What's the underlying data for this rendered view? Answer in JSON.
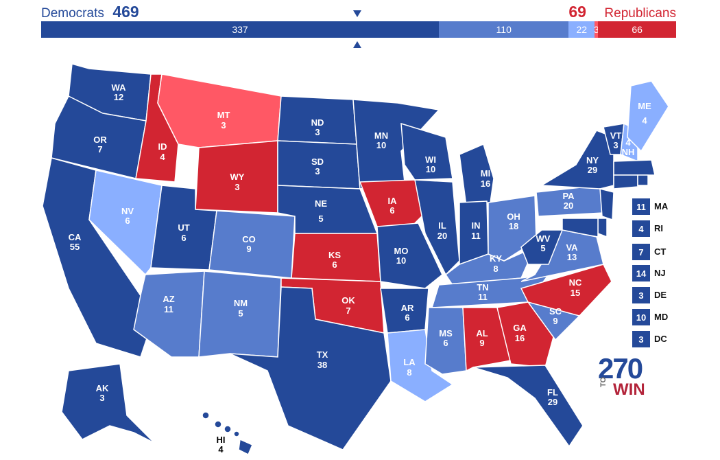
{
  "header": {
    "dem_label": "Democrats",
    "dem_total": "469",
    "rep_total": "69",
    "rep_label": "Republicans"
  },
  "bar": [
    {
      "label": "337",
      "value": 337,
      "color": "#244999"
    },
    {
      "label": "110",
      "value": 110,
      "color": "#577ccc"
    },
    {
      "label": "22",
      "value": 22,
      "color": "#8aafff"
    },
    {
      "label": "3",
      "value": 3,
      "color": "#ff5865"
    },
    {
      "label": "66",
      "value": 66,
      "color": "#d22532"
    }
  ],
  "colors": {
    "safe_dem": "#244999",
    "likely_dem": "#577ccc",
    "lean_dem": "#8aafff",
    "lean_rep": "#ff5865",
    "safe_rep": "#d22532"
  },
  "states": [
    {
      "abbr": "WA",
      "ev": "12"
    },
    {
      "abbr": "OR",
      "ev": "7"
    },
    {
      "abbr": "CA",
      "ev": "55"
    },
    {
      "abbr": "ID",
      "ev": "4"
    },
    {
      "abbr": "MT",
      "ev": "3"
    },
    {
      "abbr": "WY",
      "ev": "3"
    },
    {
      "abbr": "NV",
      "ev": "6"
    },
    {
      "abbr": "UT",
      "ev": "6"
    },
    {
      "abbr": "AZ",
      "ev": "11"
    },
    {
      "abbr": "CO",
      "ev": "9"
    },
    {
      "abbr": "NM",
      "ev": "5"
    },
    {
      "abbr": "ND",
      "ev": "3"
    },
    {
      "abbr": "SD",
      "ev": "3"
    },
    {
      "abbr": "NE",
      "ev": "5"
    },
    {
      "abbr": "KS",
      "ev": "6"
    },
    {
      "abbr": "OK",
      "ev": "7"
    },
    {
      "abbr": "TX",
      "ev": "38"
    },
    {
      "abbr": "MN",
      "ev": "10"
    },
    {
      "abbr": "IA",
      "ev": "6"
    },
    {
      "abbr": "MO",
      "ev": "10"
    },
    {
      "abbr": "AR",
      "ev": "6"
    },
    {
      "abbr": "LA",
      "ev": "8"
    },
    {
      "abbr": "WI",
      "ev": "10"
    },
    {
      "abbr": "IL",
      "ev": "20"
    },
    {
      "abbr": "MI",
      "ev": "16"
    },
    {
      "abbr": "IN",
      "ev": "11"
    },
    {
      "abbr": "OH",
      "ev": "18"
    },
    {
      "abbr": "KY",
      "ev": "8"
    },
    {
      "abbr": "TN",
      "ev": "11"
    },
    {
      "abbr": "MS",
      "ev": "6"
    },
    {
      "abbr": "AL",
      "ev": "9"
    },
    {
      "abbr": "GA",
      "ev": "16"
    },
    {
      "abbr": "FL",
      "ev": "29"
    },
    {
      "abbr": "SC",
      "ev": "9"
    },
    {
      "abbr": "NC",
      "ev": "15"
    },
    {
      "abbr": "VA",
      "ev": "13"
    },
    {
      "abbr": "WV",
      "ev": "5"
    },
    {
      "abbr": "PA",
      "ev": "20"
    },
    {
      "abbr": "NY",
      "ev": "29"
    },
    {
      "abbr": "VT",
      "ev": "3"
    },
    {
      "abbr": "NH",
      "ev": "4"
    },
    {
      "abbr": "ME",
      "ev": "4"
    },
    {
      "abbr": "AK",
      "ev": "3"
    },
    {
      "abbr": "HI",
      "ev": "4"
    }
  ],
  "small_states": [
    {
      "ev": "11",
      "abbr": "MA"
    },
    {
      "ev": "4",
      "abbr": "RI"
    },
    {
      "ev": "7",
      "abbr": "CT"
    },
    {
      "ev": "14",
      "abbr": "NJ"
    },
    {
      "ev": "3",
      "abbr": "DE"
    },
    {
      "ev": "10",
      "abbr": "MD"
    },
    {
      "ev": "3",
      "abbr": "DC"
    }
  ],
  "logo": {
    "number": "270",
    "to": "TO",
    "win": "WIN"
  }
}
